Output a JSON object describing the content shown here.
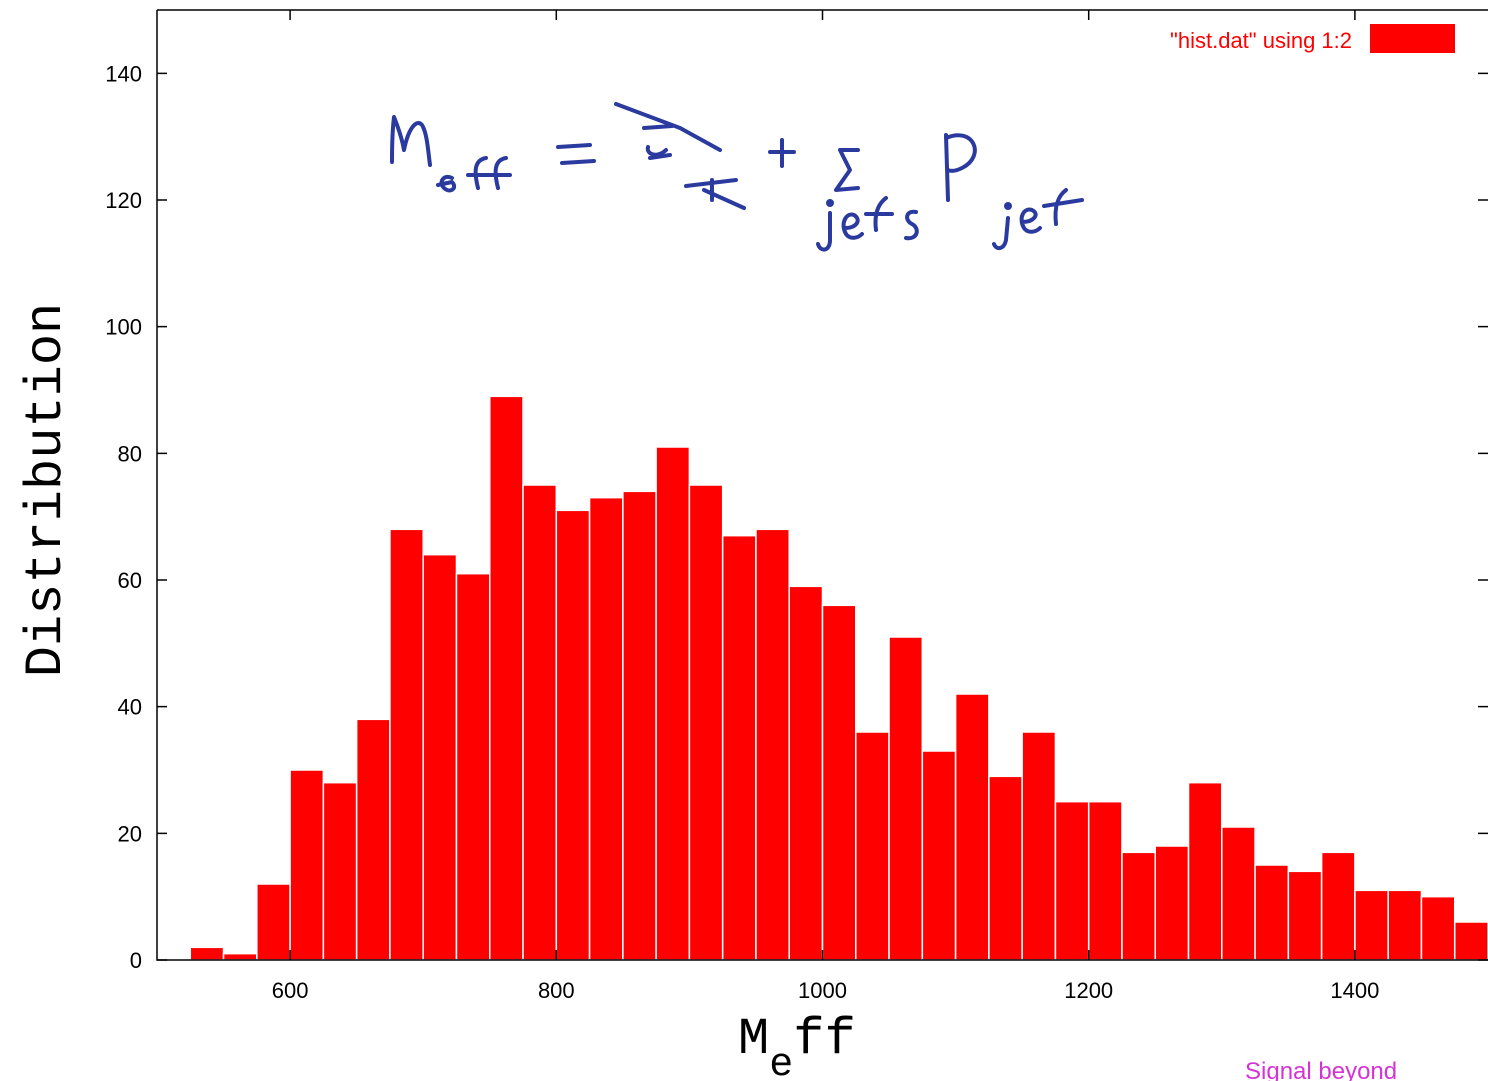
{
  "chart_data": {
    "type": "bar",
    "xlabel_main": "M",
    "xlabel_sub": "e",
    "xlabel_rest": "ff",
    "ylabel": "Distribution",
    "xlim": [
      500,
      1500
    ],
    "ylim": [
      0,
      150
    ],
    "xticks": [
      600,
      800,
      1000,
      1200,
      1400
    ],
    "yticks": [
      0,
      20,
      40,
      60,
      80,
      100,
      120,
      140
    ],
    "bin_width": 25,
    "x": [
      537.5,
      562.5,
      587.5,
      612.5,
      637.5,
      662.5,
      687.5,
      712.5,
      737.5,
      762.5,
      787.5,
      812.5,
      837.5,
      862.5,
      887.5,
      912.5,
      937.5,
      962.5,
      987.5,
      1012.5,
      1037.5,
      1062.5,
      1087.5,
      1112.5,
      1137.5,
      1162.5,
      1187.5,
      1212.5,
      1237.5,
      1262.5,
      1287.5,
      1312.5,
      1337.5,
      1362.5,
      1387.5,
      1412.5,
      1437.5,
      1462.5,
      1487.5
    ],
    "values": [
      2,
      1,
      12,
      30,
      28,
      38,
      68,
      64,
      61,
      89,
      75,
      71,
      73,
      74,
      81,
      75,
      67,
      68,
      59,
      56,
      36,
      51,
      33,
      42,
      29,
      36,
      25,
      25,
      17,
      18,
      28,
      21,
      15,
      14,
      17,
      11,
      11,
      10,
      6
    ],
    "legend": {
      "label": "\"hist.dat\" using 1:2",
      "position": "top-right",
      "color": "#ff0000"
    },
    "bar_color": "#ff0000",
    "grid": false
  },
  "annotations": {
    "handwritten_formula": "M_eff = E_T + Σ_jets P_jet",
    "ink_color": "#2b3a9e",
    "note_text": "Signal beyond",
    "note_color": "#d633d6"
  }
}
